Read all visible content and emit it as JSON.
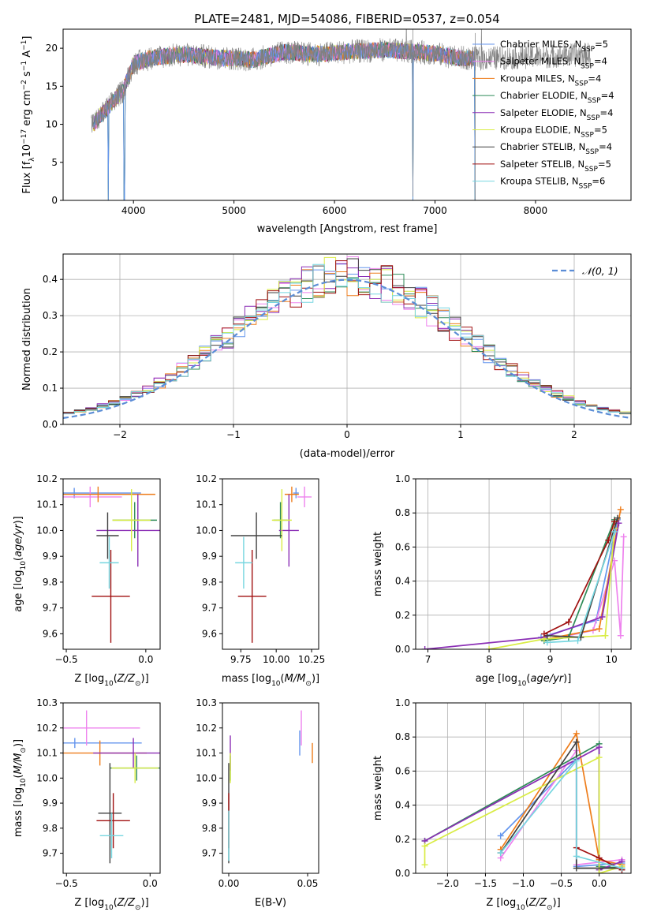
{
  "figure_title": "PLATE=2481, MJD=54086, FIBERID=0537, z=0.054",
  "legend_models": [
    {
      "name": "Chabrier MILES",
      "nssp": "5",
      "color": "#6495ed"
    },
    {
      "name": "Salpeter MILES",
      "nssp": "4",
      "color": "#ee82ee"
    },
    {
      "name": "Kroupa MILES",
      "nssp": "4",
      "color": "#ee7d1b"
    },
    {
      "name": "Chabrier ELODIE",
      "nssp": "4",
      "color": "#2e8b57"
    },
    {
      "name": "Salpeter ELODIE",
      "nssp": "4",
      "color": "#8b2fb5"
    },
    {
      "name": "Kroupa ELODIE",
      "nssp": "5",
      "color": "#d9ec44"
    },
    {
      "name": "Chabrier STELIB",
      "nssp": "4",
      "color": "#404040"
    },
    {
      "name": "Salpeter STELIB",
      "nssp": "5",
      "color": "#a01010"
    },
    {
      "name": "Kroupa STELIB",
      "nssp": "6",
      "color": "#76d6e0"
    }
  ],
  "chart_data": [
    {
      "id": "spectrum",
      "type": "line",
      "xlabel": "wavelength [Angstrom, rest frame]",
      "ylabel": "Flux [f_λ 10^-17 erg cm^-2 s^-1 A^-1]",
      "xlim": [
        3300,
        8950
      ],
      "ylim": [
        0,
        22.5
      ],
      "xticks": [
        4000,
        5000,
        6000,
        7000,
        8000
      ],
      "yticks": [
        0,
        5,
        10,
        15,
        20
      ],
      "grid": false,
      "data_color": "#808080",
      "continuum": [
        [
          3600,
          10
        ],
        [
          3700,
          11.5
        ],
        [
          3800,
          13
        ],
        [
          3900,
          14.5
        ],
        [
          4000,
          18
        ],
        [
          4200,
          18.8
        ],
        [
          4500,
          19.2
        ],
        [
          4800,
          18.8
        ],
        [
          5200,
          18.5
        ],
        [
          5500,
          19.5
        ],
        [
          5800,
          19.2
        ],
        [
          6100,
          19.5
        ],
        [
          6500,
          19.8
        ],
        [
          6800,
          19.5
        ],
        [
          7000,
          19.3
        ],
        [
          7200,
          18.8
        ],
        [
          7400,
          18.6
        ]
      ],
      "data_extent": [
        3580,
        8550
      ],
      "model_extent": [
        3600,
        7400
      ],
      "dips": [
        [
          3750,
          0
        ],
        [
          3910,
          0
        ],
        [
          6780,
          0
        ],
        [
          7400,
          0
        ]
      ],
      "legend_position": "upper right"
    },
    {
      "id": "residuals",
      "type": "histogram",
      "xlabel": "(data-model)/error",
      "ylabel": "Normed distribution",
      "xlim": [
        -2.5,
        2.5
      ],
      "ylim": [
        0,
        0.47
      ],
      "xticks": [
        -2,
        -1,
        0,
        1,
        2
      ],
      "yticks": [
        0.0,
        0.1,
        0.2,
        0.3,
        0.4
      ],
      "grid": true,
      "reference": {
        "label": "𝒩(0, 1)",
        "mean": 0,
        "sigma": 1,
        "color": "#5b8dd6",
        "style": "dashed"
      },
      "bin_width": 0.1,
      "legend_position": "upper right"
    },
    {
      "id": "age-vs-Z",
      "type": "errorbar",
      "xlabel": "Z [log10(Z/Z⊙)]",
      "ylabel": "age [log10(age/yr)]",
      "xlim": [
        -0.52,
        0.09
      ],
      "ylim": [
        9.54,
        10.2
      ],
      "xticks": [
        -0.5,
        0.0
      ],
      "yticks": [
        9.6,
        9.7,
        9.8,
        9.9,
        10.0,
        10.1,
        10.2
      ],
      "points": [
        {
          "model": 0,
          "x": -0.45,
          "y": 10.145,
          "xerr": 0.42,
          "yerr": 0.02
        },
        {
          "model": 1,
          "x": -0.35,
          "y": 10.13,
          "xerr": 0.2,
          "yerr": 0.04
        },
        {
          "model": 2,
          "x": -0.3,
          "y": 10.14,
          "xerr": 0.36,
          "yerr": 0.03
        },
        {
          "model": 3,
          "x": -0.07,
          "y": 10.04,
          "xerr": 0.14,
          "yerr": 0.07
        },
        {
          "model": 4,
          "x": -0.05,
          "y": 10.0,
          "xerr": 0.26,
          "yerr": 0.14
        },
        {
          "model": 5,
          "x": -0.09,
          "y": 10.04,
          "xerr": 0.12,
          "yerr": 0.12
        },
        {
          "model": 6,
          "x": -0.24,
          "y": 9.98,
          "xerr": 0.07,
          "yerr": 0.09
        },
        {
          "model": 7,
          "x": -0.22,
          "y": 9.745,
          "xerr": 0.12,
          "yerr": 0.18
        },
        {
          "model": 8,
          "x": -0.23,
          "y": 9.875,
          "xerr": 0.06,
          "yerr": 0.1
        }
      ]
    },
    {
      "id": "age-vs-mass",
      "type": "errorbar",
      "xlabel": "mass [log10(M/M⊙)]",
      "ylabel": "",
      "xlim": [
        9.62,
        10.3
      ],
      "ylim": [
        9.54,
        10.2
      ],
      "xticks": [
        9.75,
        10.0,
        10.25
      ],
      "yticks": [
        9.6,
        9.7,
        9.8,
        9.9,
        10.0,
        10.1,
        10.2
      ],
      "points": [
        {
          "model": 0,
          "x": 10.14,
          "y": 10.145,
          "xerr": 0.02,
          "yerr": 0.02
        },
        {
          "model": 1,
          "x": 10.2,
          "y": 10.13,
          "xerr": 0.05,
          "yerr": 0.04
        },
        {
          "model": 2,
          "x": 10.11,
          "y": 10.14,
          "xerr": 0.05,
          "yerr": 0.03
        },
        {
          "model": 3,
          "x": 10.03,
          "y": 10.04,
          "xerr": 0.05,
          "yerr": 0.07
        },
        {
          "model": 4,
          "x": 10.09,
          "y": 10.0,
          "xerr": 0.07,
          "yerr": 0.14
        },
        {
          "model": 5,
          "x": 10.04,
          "y": 10.04,
          "xerr": 0.07,
          "yerr": 0.12
        },
        {
          "model": 6,
          "x": 9.86,
          "y": 9.98,
          "xerr": 0.18,
          "yerr": 0.09
        },
        {
          "model": 7,
          "x": 9.83,
          "y": 9.745,
          "xerr": 0.1,
          "yerr": 0.18
        },
        {
          "model": 8,
          "x": 9.77,
          "y": 9.875,
          "xerr": 0.06,
          "yerr": 0.1
        }
      ]
    },
    {
      "id": "massweight-vs-age",
      "type": "line",
      "xlabel": "age [log10(age/yr)]",
      "ylabel": "mass weight",
      "xlim": [
        6.8,
        10.32
      ],
      "ylim": [
        0,
        1.0
      ],
      "xticks": [
        7,
        8,
        9,
        10
      ],
      "yticks": [
        0.0,
        0.2,
        0.4,
        0.6,
        0.8,
        1.0
      ],
      "grid": true,
      "series": [
        {
          "model": 0,
          "x": [
            8.85,
            9.75,
            10.1
          ],
          "y": [
            0.07,
            0.17,
            0.76
          ]
        },
        {
          "model": 1,
          "x": [
            8.9,
            9.7,
            10.05,
            10.15,
            10.2
          ],
          "y": [
            0.05,
            0.11,
            0.52,
            0.08,
            0.66
          ]
        },
        {
          "model": 2,
          "x": [
            8.95,
            9.8,
            10.15
          ],
          "y": [
            0.06,
            0.12,
            0.82
          ]
        },
        {
          "model": 3,
          "x": [
            8.9,
            9.3,
            10.05
          ],
          "y": [
            0.05,
            0.07,
            0.76
          ]
        },
        {
          "model": 4,
          "x": [
            6.95,
            8.9,
            9.85,
            10.12
          ],
          "y": [
            0.0,
            0.07,
            0.19,
            0.74
          ]
        },
        {
          "model": 5,
          "x": [
            8.0,
            8.9,
            9.9,
            10.05
          ],
          "y": [
            0.0,
            0.06,
            0.08,
            0.71
          ]
        },
        {
          "model": 6,
          "x": [
            8.95,
            9.5,
            10.1
          ],
          "y": [
            0.08,
            0.07,
            0.77
          ]
        },
        {
          "model": 7,
          "x": [
            8.9,
            9.3,
            9.95,
            10.05
          ],
          "y": [
            0.09,
            0.16,
            0.64,
            0.75
          ]
        },
        {
          "model": 8,
          "x": [
            8.95,
            9.45,
            10.05
          ],
          "y": [
            0.04,
            0.05,
            0.69
          ]
        }
      ]
    },
    {
      "id": "mass-vs-Z",
      "type": "errorbar",
      "xlabel": "Z [log10(Z/Z⊙)]",
      "ylabel": "mass [log10(M/M⊙)]",
      "xlim": [
        -0.52,
        0.06
      ],
      "ylim": [
        9.62,
        10.3
      ],
      "xticks": [
        -0.5,
        0.0
      ],
      "yticks": [
        9.7,
        9.8,
        9.9,
        10.0,
        10.1,
        10.2,
        10.3
      ],
      "points": [
        {
          "model": 0,
          "x": -0.45,
          "y": 10.14,
          "xerr": 0.4,
          "yerr": 0.02
        },
        {
          "model": 1,
          "x": -0.38,
          "y": 10.2,
          "xerr": 0.32,
          "yerr": 0.07
        },
        {
          "model": 2,
          "x": -0.3,
          "y": 10.1,
          "xerr": 0.28,
          "yerr": 0.05
        },
        {
          "model": 3,
          "x": -0.08,
          "y": 10.04,
          "xerr": 0.16,
          "yerr": 0.05
        },
        {
          "model": 4,
          "x": -0.1,
          "y": 10.1,
          "xerr": 0.24,
          "yerr": 0.06
        },
        {
          "model": 5,
          "x": -0.09,
          "y": 10.04,
          "xerr": 0.14,
          "yerr": 0.06
        },
        {
          "model": 6,
          "x": -0.24,
          "y": 9.86,
          "xerr": 0.07,
          "yerr": 0.2
        },
        {
          "model": 7,
          "x": -0.22,
          "y": 9.83,
          "xerr": 0.1,
          "yerr": 0.11
        },
        {
          "model": 8,
          "x": -0.23,
          "y": 9.77,
          "xerr": 0.07,
          "yerr": 0.09
        }
      ]
    },
    {
      "id": "mass-vs-ebv",
      "type": "errorbar",
      "xlabel": "E(B-V)",
      "ylabel": "",
      "xlim": [
        -0.004,
        0.057
      ],
      "ylim": [
        9.62,
        10.3
      ],
      "xticks": [
        0.0,
        0.05
      ],
      "yticks": [
        9.7,
        9.8,
        9.9,
        10.0,
        10.1,
        10.2,
        10.3
      ],
      "points": [
        {
          "model": 0,
          "x": 0.045,
          "y": 10.14,
          "xerr": 0,
          "yerr": 0.05
        },
        {
          "model": 1,
          "x": 0.046,
          "y": 10.2,
          "xerr": 0,
          "yerr": 0.07
        },
        {
          "model": 2,
          "x": 0.053,
          "y": 10.1,
          "xerr": 0,
          "yerr": 0.04
        },
        {
          "model": 3,
          "x": 0.001,
          "y": 10.04,
          "xerr": 0,
          "yerr": 0.05
        },
        {
          "model": 4,
          "x": 0.001,
          "y": 10.1,
          "xerr": 0,
          "yerr": 0.07
        },
        {
          "model": 5,
          "x": 0.001,
          "y": 10.04,
          "xerr": 0,
          "yerr": 0.06
        },
        {
          "model": 6,
          "x": 0.0,
          "y": 9.86,
          "xerr": 0,
          "yerr": 0.2
        },
        {
          "model": 7,
          "x": 0.0,
          "y": 9.83,
          "xerr": 0,
          "yerr": 0.11
        },
        {
          "model": 8,
          "x": 0.0,
          "y": 9.77,
          "xerr": 0,
          "yerr": 0.1
        }
      ]
    },
    {
      "id": "massweight-vs-Z",
      "type": "line",
      "xlabel": "Z [log10(Z/Z⊙)]",
      "ylabel": "mass weight",
      "xlim": [
        -2.42,
        0.42
      ],
      "ylim": [
        0,
        1.0
      ],
      "xticks": [
        -2.0,
        -1.5,
        -1.0,
        -0.5,
        0.0
      ],
      "yticks": [
        0.0,
        0.2,
        0.4,
        0.6,
        0.8,
        1.0
      ],
      "grid": true,
      "series": [
        {
          "model": 0,
          "x": [
            -1.3,
            -0.3,
            -0.3,
            0.3
          ],
          "y": [
            0.22,
            0.67,
            0.04,
            0.06
          ]
        },
        {
          "model": 1,
          "x": [
            -1.3,
            -0.3,
            -0.3,
            0.3
          ],
          "y": [
            0.09,
            0.72,
            0.05,
            0.08
          ]
        },
        {
          "model": 2,
          "x": [
            -1.3,
            -0.3,
            0.0,
            0.3
          ],
          "y": [
            0.14,
            0.82,
            0.08,
            0.05
          ]
        },
        {
          "model": 3,
          "x": [
            -2.3,
            0.0,
            0.0,
            0.3
          ],
          "y": [
            0.19,
            0.76,
            0.04,
            0.03
          ]
        },
        {
          "model": 4,
          "x": [
            -2.3,
            0.0,
            0.0,
            0.3
          ],
          "y": [
            0.19,
            0.74,
            0.02,
            0.07
          ]
        },
        {
          "model": 5,
          "x": [
            -2.3,
            -2.3,
            0.0,
            0.0,
            0.3
          ],
          "y": [
            0.05,
            0.16,
            0.68,
            0.0,
            0.04
          ]
        },
        {
          "model": 6,
          "x": [
            -1.3,
            -0.3,
            -0.3,
            0.3
          ],
          "y": [
            0.12,
            0.77,
            0.03,
            0.03
          ]
        },
        {
          "model": 7,
          "x": [
            -0.3,
            0.0,
            0.3
          ],
          "y": [
            0.15,
            0.09,
            0.02
          ]
        },
        {
          "model": 8,
          "x": [
            -1.3,
            -0.3,
            -0.3,
            0.3
          ],
          "y": [
            0.12,
            0.66,
            0.1,
            0.03
          ]
        }
      ]
    }
  ]
}
